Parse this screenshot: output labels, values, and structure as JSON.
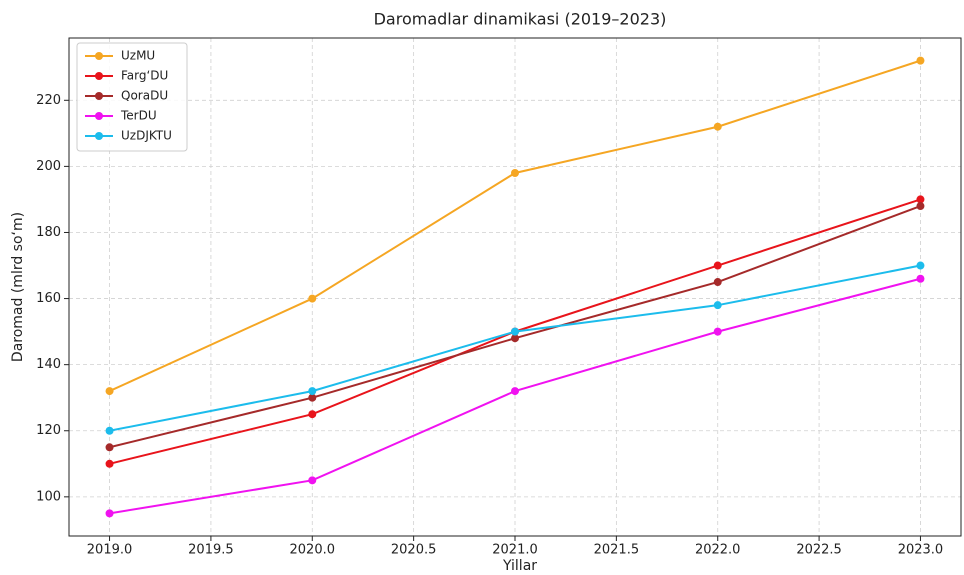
{
  "chart_data": {
    "type": "line",
    "title": "Daromadlar dinamikasi (2019–2023)",
    "xlabel": "Yillar",
    "ylabel": "Daromad (mlrd so‘m)",
    "x": [
      2019,
      2020,
      2021,
      2022,
      2023
    ],
    "series": [
      {
        "name": "UzMU",
        "color": "#f5a623",
        "values": [
          132,
          160,
          198,
          212,
          232
        ]
      },
      {
        "name": "Farg‘DU",
        "color": "#e8141b",
        "values": [
          110,
          125,
          150,
          170,
          190
        ]
      },
      {
        "name": "QoraDU",
        "color": "#a52a2a",
        "values": [
          115,
          130,
          148,
          165,
          188
        ]
      },
      {
        "name": "TerDU",
        "color": "#f012f0",
        "values": [
          95,
          105,
          132,
          150,
          166
        ]
      },
      {
        "name": "UzDJKTU",
        "color": "#1cbcec",
        "values": [
          120,
          132,
          150,
          158,
          170
        ]
      }
    ],
    "xlim": [
      2018.8,
      2023.2
    ],
    "xticks": [
      {
        "value": 2019,
        "label": "2019.0"
      },
      {
        "value": 2019.5,
        "label": "2019.5"
      },
      {
        "value": 2020,
        "label": "2020.0"
      },
      {
        "value": 2020.5,
        "label": "2020.5"
      },
      {
        "value": 2021,
        "label": "2021.0"
      },
      {
        "value": 2021.5,
        "label": "2021.5"
      },
      {
        "value": 2022,
        "label": "2022.0"
      },
      {
        "value": 2022.5,
        "label": "2022.5"
      },
      {
        "value": 2023,
        "label": "2023.0"
      }
    ],
    "ylim": [
      88.15,
      238.85
    ],
    "yticks": [
      100,
      120,
      140,
      160,
      180,
      200,
      220
    ],
    "grid": true,
    "legend": "upper left"
  }
}
